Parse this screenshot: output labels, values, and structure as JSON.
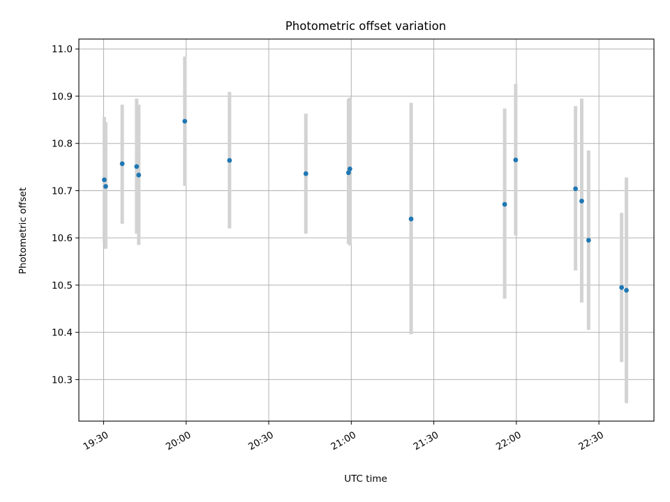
{
  "chart_data": {
    "type": "scatter",
    "title": "Photometric offset variation",
    "xlabel": "UTC time",
    "ylabel": "Photometric offset",
    "x_ticks": [
      "19:30",
      "20:00",
      "20:30",
      "21:00",
      "21:30",
      "22:00",
      "22:30"
    ],
    "y_ticks": [
      "10.3",
      "10.4",
      "10.5",
      "10.6",
      "10.7",
      "10.8",
      "10.9",
      "11.0"
    ],
    "xlim": [
      "19:21",
      "22:50"
    ],
    "ylim": [
      10.212,
      11.021
    ],
    "grid": true,
    "legend": "none",
    "series": [
      {
        "marker_color": "#1f77b4",
        "errorbar_color": "#d3d3d3",
        "points": [
          {
            "x": "19:30:15",
            "y": 10.723,
            "lo": 10.592,
            "hi": 10.856
          },
          {
            "x": "19:30:45",
            "y": 10.709,
            "lo": 10.577,
            "hi": 10.845
          },
          {
            "x": "19:36:45",
            "y": 10.757,
            "lo": 10.63,
            "hi": 10.882
          },
          {
            "x": "19:42:00",
            "y": 10.751,
            "lo": 10.609,
            "hi": 10.895
          },
          {
            "x": "19:42:45",
            "y": 10.733,
            "lo": 10.585,
            "hi": 10.882
          },
          {
            "x": "19:59:30",
            "y": 10.847,
            "lo": 10.71,
            "hi": 10.984
          },
          {
            "x": "20:15:45",
            "y": 10.764,
            "lo": 10.62,
            "hi": 10.909
          },
          {
            "x": "20:43:30",
            "y": 10.736,
            "lo": 10.609,
            "hi": 10.863
          },
          {
            "x": "20:59:00",
            "y": 10.738,
            "lo": 10.587,
            "hi": 10.894
          },
          {
            "x": "20:59:30",
            "y": 10.746,
            "lo": 10.584,
            "hi": 10.897
          },
          {
            "x": "21:21:45",
            "y": 10.64,
            "lo": 10.396,
            "hi": 10.886
          },
          {
            "x": "21:55:45",
            "y": 10.671,
            "lo": 10.471,
            "hi": 10.874
          },
          {
            "x": "21:59:45",
            "y": 10.765,
            "lo": 10.605,
            "hi": 10.926
          },
          {
            "x": "22:21:30",
            "y": 10.704,
            "lo": 10.531,
            "hi": 10.879
          },
          {
            "x": "22:23:45",
            "y": 10.678,
            "lo": 10.463,
            "hi": 10.895
          },
          {
            "x": "22:26:15",
            "y": 10.595,
            "lo": 10.405,
            "hi": 10.785
          },
          {
            "x": "22:38:15",
            "y": 10.495,
            "lo": 10.337,
            "hi": 10.653
          },
          {
            "x": "22:40:00",
            "y": 10.489,
            "lo": 10.25,
            "hi": 10.728
          }
        ]
      }
    ]
  }
}
